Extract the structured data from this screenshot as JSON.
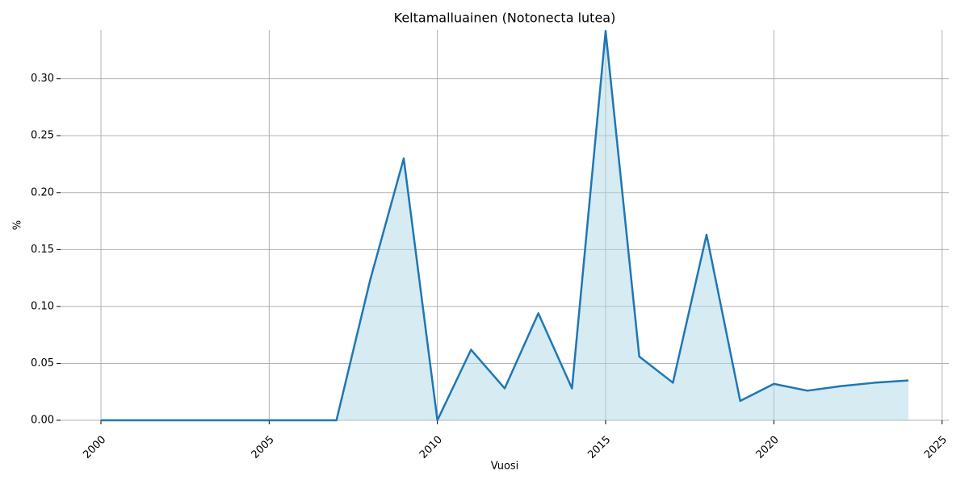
{
  "chart_data": {
    "type": "area-line",
    "title": "Keltamalluainen (Notonecta lutea)",
    "x_label": "Vuosi",
    "y_label": "%",
    "x": [
      2000,
      2001,
      2002,
      2003,
      2004,
      2005,
      2006,
      2007,
      2008,
      2009,
      2010,
      2011,
      2012,
      2013,
      2014,
      2015,
      2016,
      2017,
      2018,
      2019,
      2020,
      2021,
      2022,
      2023,
      2024
    ],
    "series": [
      {
        "color": "#1f77b4",
        "fill_color": "#add8e6",
        "values": [
          0,
          0,
          0,
          0,
          0,
          0,
          0,
          0,
          0.123,
          0.23,
          0,
          0.062,
          0.028,
          0.094,
          0.028,
          0.342,
          0.056,
          0.033,
          0.163,
          0.017,
          0.032,
          0.026,
          0.03,
          0.033,
          0.035
        ]
      }
    ],
    "xlim": [
      1998.8,
      2025.2
    ],
    "ylim": [
      0,
      0.343
    ],
    "xticks": [
      2000,
      2005,
      2010,
      2015,
      2020,
      2025
    ],
    "yticks": [
      {
        "value": 0,
        "label": "0.00"
      },
      {
        "value": 0.05,
        "label": "0.05"
      },
      {
        "value": 0.1,
        "label": "0.10"
      },
      {
        "value": 0.15,
        "label": "0.15"
      },
      {
        "value": 0.2,
        "label": "0.20"
      },
      {
        "value": 0.25,
        "label": "0.25"
      },
      {
        "value": 0.3,
        "label": "0.30"
      }
    ],
    "grid": true
  }
}
